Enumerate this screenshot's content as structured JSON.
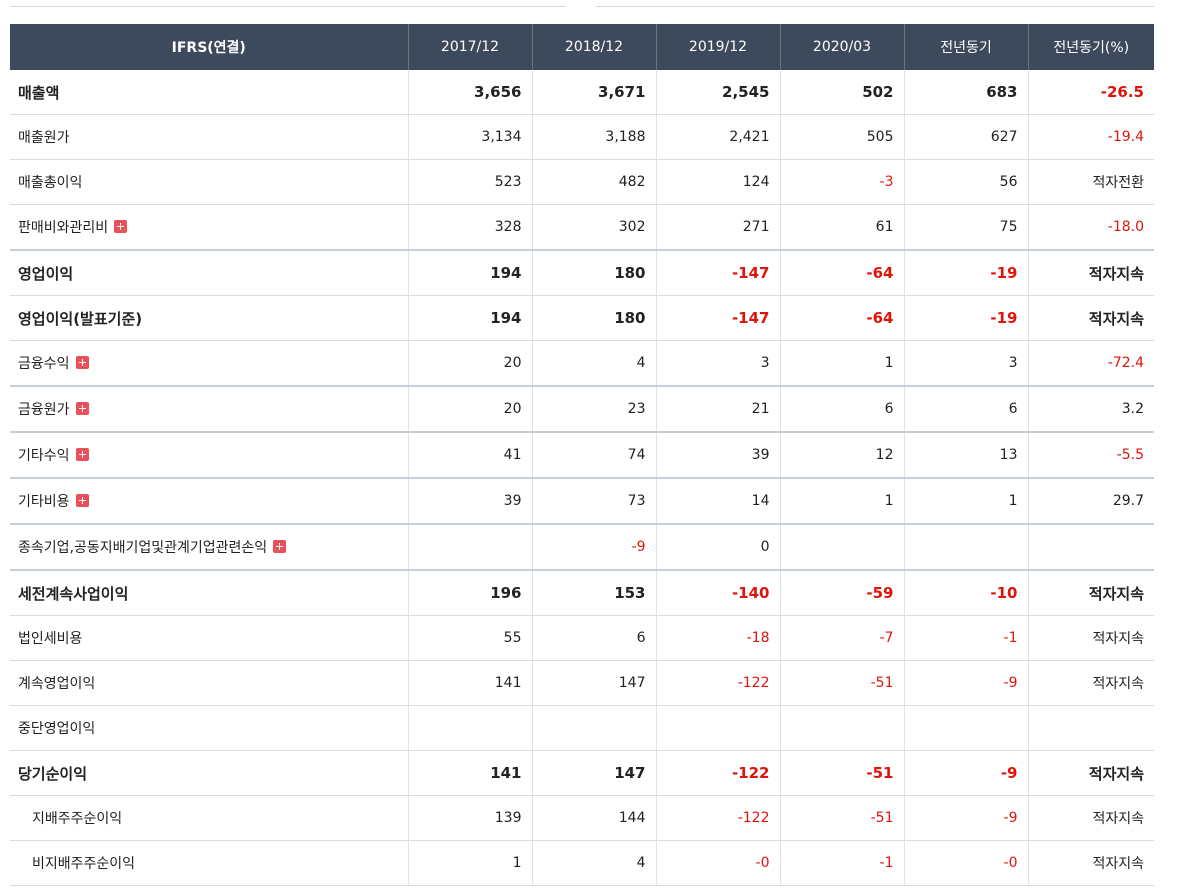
{
  "header": {
    "label": "IFRS(연결)",
    "columns": [
      "2017/12",
      "2018/12",
      "2019/12",
      "2020/03",
      "전년동기",
      "전년동기(%)"
    ]
  },
  "rows": [
    {
      "label": "매출액",
      "bold": true,
      "expand": false,
      "indent": false,
      "major": false,
      "values": [
        "3,656",
        "3,671",
        "2,545",
        "502",
        "683",
        "-26.5"
      ],
      "negative": [
        false,
        false,
        false,
        false,
        false,
        true
      ]
    },
    {
      "label": "매출원가",
      "bold": false,
      "expand": false,
      "indent": false,
      "major": false,
      "values": [
        "3,134",
        "3,188",
        "2,421",
        "505",
        "627",
        "-19.4"
      ],
      "negative": [
        false,
        false,
        false,
        false,
        false,
        true
      ]
    },
    {
      "label": "매출총이익",
      "bold": false,
      "expand": false,
      "indent": false,
      "major": false,
      "values": [
        "523",
        "482",
        "124",
        "-3",
        "56",
        "적자전환"
      ],
      "negative": [
        false,
        false,
        false,
        true,
        false,
        false
      ]
    },
    {
      "label": "판매비와관리비",
      "bold": false,
      "expand": true,
      "indent": false,
      "major": true,
      "values": [
        "328",
        "302",
        "271",
        "61",
        "75",
        "-18.0"
      ],
      "negative": [
        false,
        false,
        false,
        false,
        false,
        true
      ]
    },
    {
      "label": "영업이익",
      "bold": true,
      "expand": false,
      "indent": false,
      "major": false,
      "values": [
        "194",
        "180",
        "-147",
        "-64",
        "-19",
        "적자지속"
      ],
      "negative": [
        false,
        false,
        true,
        true,
        true,
        false
      ]
    },
    {
      "label": "영업이익(발표기준)",
      "bold": true,
      "expand": false,
      "indent": false,
      "major": false,
      "values": [
        "194",
        "180",
        "-147",
        "-64",
        "-19",
        "적자지속"
      ],
      "negative": [
        false,
        false,
        true,
        true,
        true,
        false
      ]
    },
    {
      "label": "금융수익",
      "bold": false,
      "expand": true,
      "indent": false,
      "major": true,
      "values": [
        "20",
        "4",
        "3",
        "1",
        "3",
        "-72.4"
      ],
      "negative": [
        false,
        false,
        false,
        false,
        false,
        true
      ]
    },
    {
      "label": "금융원가",
      "bold": false,
      "expand": true,
      "indent": false,
      "major": true,
      "values": [
        "20",
        "23",
        "21",
        "6",
        "6",
        "3.2"
      ],
      "negative": [
        false,
        false,
        false,
        false,
        false,
        false
      ]
    },
    {
      "label": "기타수익",
      "bold": false,
      "expand": true,
      "indent": false,
      "major": true,
      "values": [
        "41",
        "74",
        "39",
        "12",
        "13",
        "-5.5"
      ],
      "negative": [
        false,
        false,
        false,
        false,
        false,
        true
      ]
    },
    {
      "label": "기타비용",
      "bold": false,
      "expand": true,
      "indent": false,
      "major": true,
      "values": [
        "39",
        "73",
        "14",
        "1",
        "1",
        "29.7"
      ],
      "negative": [
        false,
        false,
        false,
        false,
        false,
        false
      ]
    },
    {
      "label": "종속기업,공동지배기업및관계기업관련손익",
      "bold": false,
      "expand": true,
      "indent": false,
      "major": true,
      "values": [
        "",
        "-9",
        "0",
        "",
        "",
        ""
      ],
      "negative": [
        false,
        true,
        false,
        false,
        false,
        false
      ]
    },
    {
      "label": "세전계속사업이익",
      "bold": true,
      "expand": false,
      "indent": false,
      "major": false,
      "values": [
        "196",
        "153",
        "-140",
        "-59",
        "-10",
        "적자지속"
      ],
      "negative": [
        false,
        false,
        true,
        true,
        true,
        false
      ]
    },
    {
      "label": "법인세비용",
      "bold": false,
      "expand": false,
      "indent": false,
      "major": false,
      "values": [
        "55",
        "6",
        "-18",
        "-7",
        "-1",
        "적자지속"
      ],
      "negative": [
        false,
        false,
        true,
        true,
        true,
        false
      ]
    },
    {
      "label": "계속영업이익",
      "bold": false,
      "expand": false,
      "indent": false,
      "major": false,
      "values": [
        "141",
        "147",
        "-122",
        "-51",
        "-9",
        "적자지속"
      ],
      "negative": [
        false,
        false,
        true,
        true,
        true,
        false
      ]
    },
    {
      "label": "중단영업이익",
      "bold": false,
      "expand": false,
      "indent": false,
      "major": false,
      "values": [
        "",
        "",
        "",
        "",
        "",
        ""
      ],
      "negative": [
        false,
        false,
        false,
        false,
        false,
        false
      ]
    },
    {
      "label": "당기순이익",
      "bold": true,
      "expand": false,
      "indent": false,
      "major": false,
      "values": [
        "141",
        "147",
        "-122",
        "-51",
        "-9",
        "적자지속"
      ],
      "negative": [
        false,
        false,
        true,
        true,
        true,
        false
      ]
    },
    {
      "label": "지배주주순이익",
      "bold": false,
      "expand": false,
      "indent": true,
      "major": false,
      "values": [
        "139",
        "144",
        "-122",
        "-51",
        "-9",
        "적자지속"
      ],
      "negative": [
        false,
        false,
        true,
        true,
        true,
        false
      ]
    },
    {
      "label": "비지배주주순이익",
      "bold": false,
      "expand": false,
      "indent": true,
      "major": false,
      "values": [
        "1",
        "4",
        "-0",
        "-1",
        "-0",
        "적자지속"
      ],
      "negative": [
        false,
        false,
        true,
        true,
        true,
        false
      ]
    }
  ],
  "colors": {
    "header_bg": "#3d4a5b",
    "negative": "#e0130b",
    "expand_icon": "#e8505a"
  }
}
